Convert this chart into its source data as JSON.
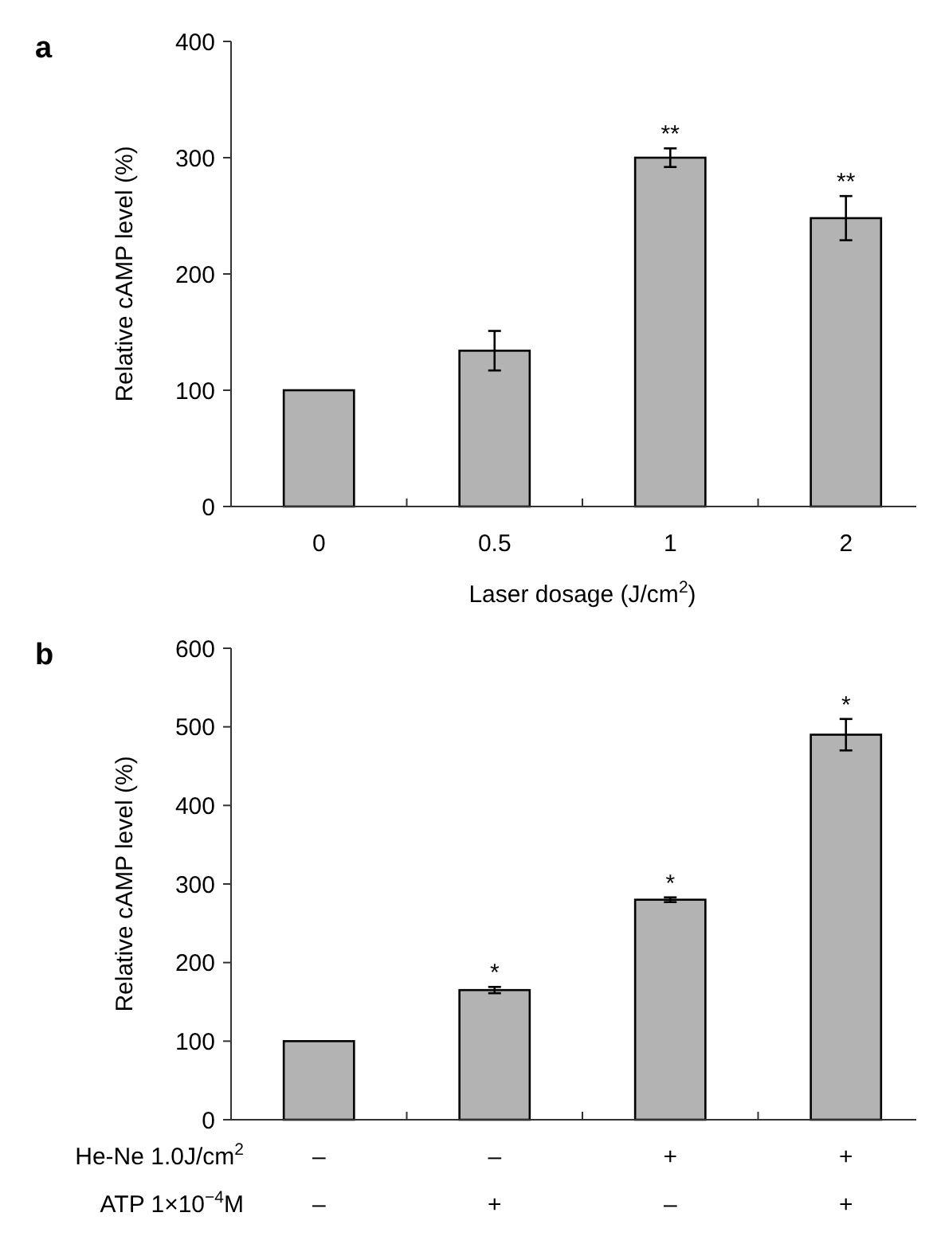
{
  "chart_data": [
    {
      "type": "bar",
      "title": "a",
      "categories": [
        "0",
        "0.5",
        "1",
        "2"
      ],
      "values": [
        100,
        134,
        300,
        248
      ],
      "errors": [
        null,
        17,
        8,
        19
      ],
      "color": "#b3b3b3",
      "ylim": [
        0,
        400
      ],
      "yticks": [
        0,
        100,
        200,
        300,
        400
      ],
      "ylabel": "Relative cAMP level (%)",
      "xlabel": "Laser dosage (J/cm$^{2}$)",
      "annotations": [
        {
          "text": "**",
          "x": "1",
          "y": 308
        },
        {
          "text": "**",
          "x": "2",
          "y": 267
        }
      ]
    },
    {
      "type": "bar",
      "title": "b",
      "categories": [
        "–\n–",
        "–\n+",
        "+\n–",
        "+\n+"
      ],
      "values": [
        100,
        165,
        280,
        490
      ],
      "errors": [
        null,
        4,
        3,
        20
      ],
      "color": "#b3b3b3",
      "ylim": [
        0,
        600
      ],
      "yticks": [
        0,
        100,
        200,
        300,
        400,
        500,
        600
      ],
      "ylabel": "Relative cAMP level (%)",
      "annotations": [
        "He-Ne 1.0J/cm$^{2}$",
        "ATP 1×10$^{−4}$M",
        {
          "text": "*",
          "x": "–\n+",
          "y": 169
        },
        {
          "text": "*",
          "x": "+\n–",
          "y": 283
        },
        {
          "text": "*",
          "x": "+\n+",
          "y": 510
        }
      ]
    }
  ]
}
